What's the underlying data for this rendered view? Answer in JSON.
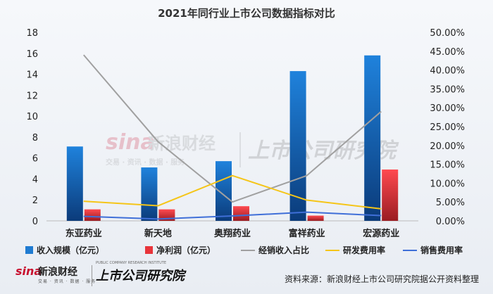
{
  "chart_data": {
    "type": "bar",
    "title": "2021年同行业上市公司数据指标对比",
    "categories": [
      "东亚药业",
      "新天地",
      "奥翔药业",
      "富祥药业",
      "宏源药业"
    ],
    "left_axis": {
      "min": 0,
      "max": 18,
      "step": 2,
      "ticks": [
        "0",
        "2",
        "4",
        "6",
        "8",
        "10",
        "12",
        "14",
        "16",
        "18"
      ]
    },
    "right_axis": {
      "min": 0,
      "max": 50,
      "step": 5,
      "ticks": [
        "0.00%",
        "5.00%",
        "10.00%",
        "15.00%",
        "20.00%",
        "25.00%",
        "30.00%",
        "35.00%",
        "40.00%",
        "45.00%",
        "50.00%"
      ]
    },
    "grid": false,
    "legend_position": "bottom",
    "series": [
      {
        "name": "收入规模（亿元）",
        "kind": "bar",
        "axis": "left",
        "color": "#1f7bd1",
        "values": [
          7.1,
          5.1,
          5.7,
          14.3,
          15.8
        ]
      },
      {
        "name": "净利润（亿元）",
        "kind": "bar",
        "axis": "left",
        "color": "#e8343a",
        "values": [
          1.1,
          1.1,
          1.4,
          0.5,
          4.9
        ]
      },
      {
        "name": "经销收入占比",
        "kind": "line",
        "axis": "right",
        "color": "#a0a0a0",
        "values": [
          44,
          21,
          5,
          12,
          29
        ]
      },
      {
        "name": "研发费用率",
        "kind": "line",
        "axis": "right",
        "color": "#f5c518",
        "values": [
          5.2,
          4.0,
          12.0,
          5.5,
          3.2
        ]
      },
      {
        "name": "销售费用率",
        "kind": "line",
        "axis": "right",
        "color": "#3f6fd8",
        "values": [
          1.2,
          0.5,
          1.3,
          2.3,
          1.4
        ]
      }
    ]
  },
  "watermark": {
    "sina_logo": "sina",
    "sina_cn": "新浪财经",
    "sina_sub": "交易 · 资讯 · 数据 · 服务",
    "institute": "上市公司研究院"
  },
  "footer": {
    "source": "资料来源：新浪财经上市公司研究院据公开资料整理",
    "logo_sina": "sina",
    "logo_cn": "新浪财经",
    "logo_sub": "交易 · 资讯 · 数据 · 服务",
    "logo_institute_en": "PUBLIC COMPANY RESEARCH INSTITUTE",
    "logo_institute": "上市公司研究院"
  }
}
